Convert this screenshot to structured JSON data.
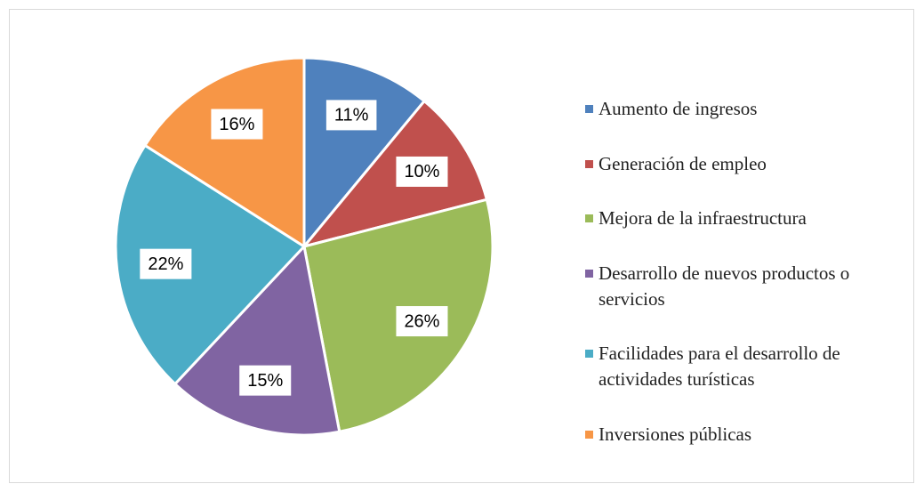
{
  "chart_data": {
    "type": "pie",
    "categories": [
      "Aumento de ingresos",
      "Generación de empleo",
      "Mejora de la infraestructura",
      "Desarrollo de nuevos productos o servicios",
      "Facilidades para el desarrollo de actividades turísticas",
      "Inversiones públicas"
    ],
    "values": [
      11,
      10,
      26,
      15,
      22,
      16
    ],
    "value_labels": [
      "11%",
      "10%",
      "26%",
      "15%",
      "22%",
      "16%"
    ],
    "colors": [
      "#4f81bd",
      "#c0504d",
      "#9bbb59",
      "#8064a2",
      "#4bacc6",
      "#f79646"
    ],
    "legend": "right"
  }
}
